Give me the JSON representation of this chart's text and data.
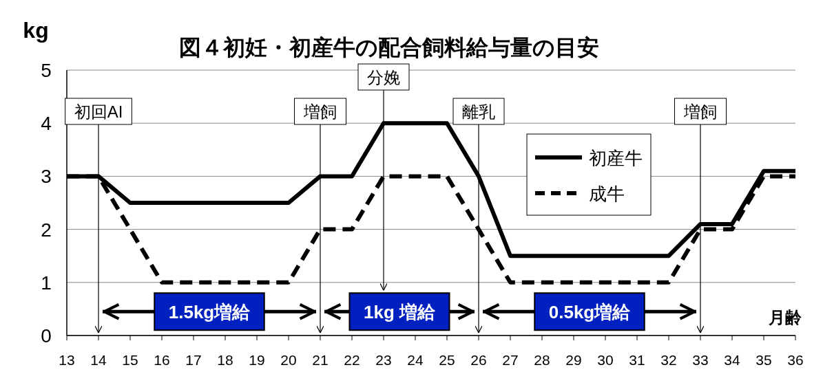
{
  "chart_data": {
    "type": "line",
    "title": "図４初妊・初産牛の配合飼料給与量の目安",
    "xlabel": "月齢",
    "ylabel": "kg",
    "x": [
      13,
      14,
      15,
      16,
      17,
      18,
      19,
      20,
      21,
      22,
      23,
      24,
      25,
      26,
      27,
      28,
      29,
      30,
      31,
      32,
      33,
      34,
      35,
      36
    ],
    "series": [
      {
        "name": "初産牛",
        "color": "#000000",
        "line_style": "solid",
        "values": [
          3,
          3,
          2.5,
          2.5,
          2.5,
          2.5,
          2.5,
          2.5,
          3,
          3,
          4,
          4,
          4,
          3,
          1.5,
          1.5,
          1.5,
          1.5,
          1.5,
          1.5,
          2.1,
          2.1,
          3.1,
          3.1
        ]
      },
      {
        "name": "成牛",
        "color": "#000000",
        "line_style": "dashed",
        "values": [
          3,
          3,
          2,
          1,
          1,
          1,
          1,
          1,
          2,
          2,
          3,
          3,
          3,
          2,
          1,
          1,
          1,
          1,
          1,
          1,
          2,
          2,
          3,
          3
        ]
      }
    ],
    "xlim": [
      13,
      36
    ],
    "xticks": [
      13,
      14,
      15,
      16,
      17,
      18,
      19,
      20,
      21,
      22,
      23,
      24,
      25,
      26,
      27,
      28,
      29,
      30,
      31,
      32,
      33,
      34,
      35,
      36
    ],
    "ylim": [
      0,
      5
    ],
    "yticks": [
      0,
      1,
      2,
      3,
      4,
      5
    ],
    "grid": "y",
    "legend": "top right",
    "marker": "none",
    "ref_lines": [
      {
        "axis": "x",
        "value": 14,
        "label": "初回AI"
      },
      {
        "axis": "x",
        "value": 21,
        "label": "増飼"
      },
      {
        "axis": "x",
        "value": 23,
        "label": "分娩"
      },
      {
        "axis": "x",
        "value": 26,
        "label": "離乳"
      },
      {
        "axis": "x",
        "value": 33,
        "label": "増飼"
      }
    ],
    "annotations": [
      "1.5kg増給",
      "1kg 増給",
      "0.5kg増給"
    ]
  }
}
